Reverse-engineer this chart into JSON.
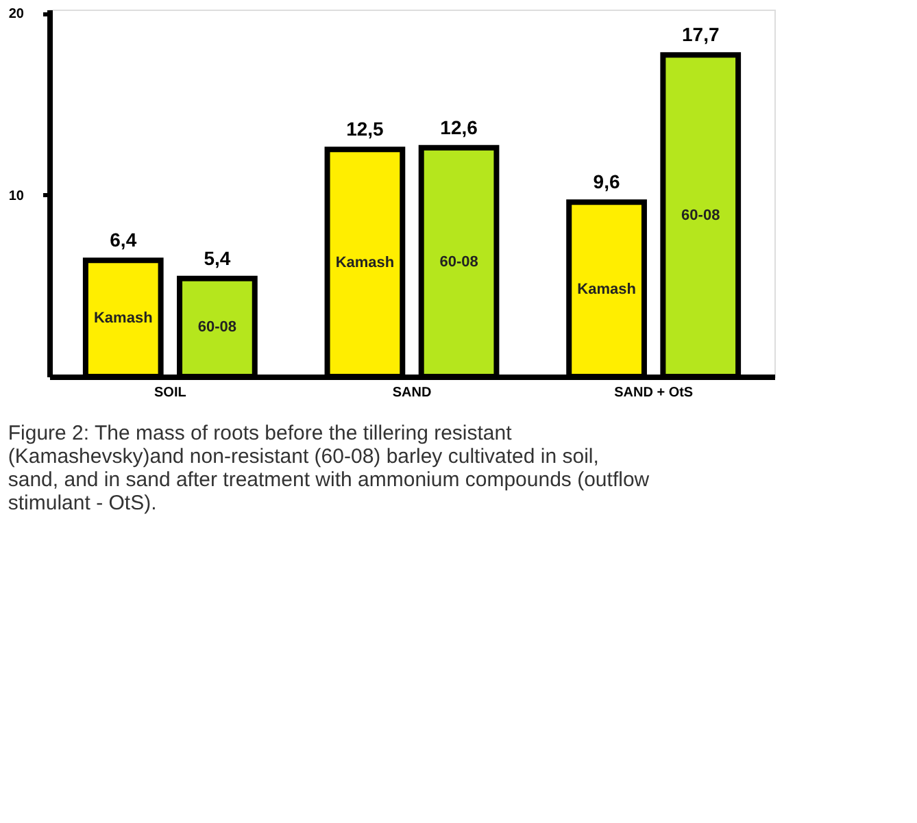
{
  "chart_data": {
    "type": "bar",
    "categories": [
      "SOIL",
      "SAND",
      "SAND + OtS"
    ],
    "series": [
      {
        "name": "Kamash",
        "color": "#ffee00",
        "values": [
          6.4,
          12.5,
          9.6
        ],
        "value_labels": [
          "6,4",
          "12,5",
          "9,6"
        ]
      },
      {
        "name": "60-08",
        "color": "#b5e61d",
        "values": [
          5.4,
          12.6,
          17.7
        ],
        "value_labels": [
          "5,4",
          "12,6",
          "17,7"
        ]
      }
    ],
    "ylim": [
      0,
      20.2
    ],
    "yticks": [
      10,
      20
    ],
    "grid": false,
    "annotations": [
      "Figure 2: The mass of roots before the tillering resistant (Kamashevsky)and non-resistant (60-08) barley cultivated in soil, sand, and in sand after treatment with ammonium compounds (outflow stimulant - OtS)."
    ]
  }
}
